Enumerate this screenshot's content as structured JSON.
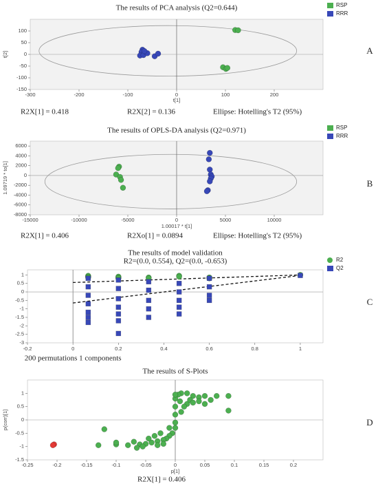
{
  "chart_data": [
    {
      "type": "scatter",
      "title": "The results of PCA analysis (Q2=0.644)",
      "xlabel": "t[1]",
      "ylabel": "t[2]",
      "footer": [
        "R2X[1] = 0.418",
        "R2X[2] = 0.136",
        "Ellipse: Hotelling's T2 (95%)"
      ],
      "panel_label": "A",
      "xlim": [
        -300,
        300
      ],
      "xticks": [
        -300,
        -200,
        -100,
        0,
        100,
        200
      ],
      "ylim": [
        -150,
        150
      ],
      "yticks": [
        -150,
        -100,
        -50,
        0,
        50,
        100
      ],
      "series": [
        {
          "name": "RSP",
          "color": "#4caf50",
          "x": [
            120,
            126,
            95,
            101,
            104
          ],
          "values": [
            104,
            103,
            -55,
            -62,
            -58
          ]
        },
        {
          "name": "RRR",
          "color": "#3848b8",
          "x": [
            -70,
            -72,
            -75,
            -68,
            -60,
            -45,
            -38,
            -66
          ],
          "values": [
            20,
            10,
            -5,
            -3,
            5,
            -8,
            3,
            14
          ]
        }
      ]
    },
    {
      "type": "scatter",
      "title": "The results of OPLS-DA analysis (Q2=0.971)",
      "xlabel": "1.00017 * t[1]",
      "ylabel": "1.09719 * to[1]",
      "footer": [
        "R2X[1] = 0.406",
        "R2Xo[1] = 0.0894",
        "Ellipse: Hotelling's T2 (95%)"
      ],
      "panel_label": "B",
      "xlim": [
        -15000,
        15000
      ],
      "xticks": [
        -15000,
        -10000,
        -5000,
        0,
        5000,
        10000
      ],
      "ylim": [
        -8000,
        7000
      ],
      "yticks": [
        -8000,
        -6000,
        -4000,
        -2000,
        0,
        2000,
        4000,
        6000
      ],
      "series": [
        {
          "name": "RSP",
          "color": "#4caf50",
          "x": [
            -5900,
            -6000,
            -6200,
            -5800,
            -5700,
            -5500
          ],
          "values": [
            1800,
            1500,
            200,
            -300,
            -900,
            -2500
          ]
        },
        {
          "name": "RRR",
          "color": "#3848b8",
          "x": [
            3400,
            3300,
            3400,
            3500,
            3600,
            3500,
            3400,
            3200,
            3100
          ],
          "values": [
            4600,
            3300,
            1200,
            200,
            -200,
            -600,
            -1200,
            -3000,
            -3200
          ]
        }
      ]
    },
    {
      "type": "scatter",
      "title": "The results of model validation",
      "subtitle": "R2=(0.0, 0.554), Q2=(0.0, -0.653)",
      "xlabel": "200 permutations 1 components",
      "footer": [],
      "panel_label": "C",
      "xlim": [
        -0.2,
        1.1
      ],
      "xticks": [
        -0.2,
        0,
        0.2,
        0.4,
        0.6,
        0.8,
        1
      ],
      "ylim": [
        -3,
        1.3
      ],
      "yticks": [
        -3,
        -2.5,
        -2,
        -1.5,
        -1,
        -0.5,
        0,
        0.5,
        1
      ],
      "series": [
        {
          "name": "R2",
          "color": "#4caf50",
          "marker": "circle",
          "x": [
            0.067,
            0.067,
            0.067,
            0.2,
            0.2,
            0.2,
            0.333,
            0.333,
            0.467,
            0.467,
            0.6,
            0.6,
            1
          ],
          "values": [
            0.95,
            0.9,
            0.85,
            0.9,
            0.85,
            0.8,
            0.85,
            0.8,
            0.95,
            0.9,
            0.85,
            0.8,
            1
          ]
        },
        {
          "name": "Q2",
          "color": "#3848b8",
          "marker": "square",
          "x": [
            0.067,
            0.067,
            0.067,
            0.067,
            0.067,
            0.067,
            0.067,
            0.2,
            0.2,
            0.2,
            0.2,
            0.2,
            0.2,
            0.2,
            0.333,
            0.333,
            0.333,
            0.333,
            0.333,
            0.467,
            0.467,
            0.467,
            0.467,
            0.467,
            0.6,
            0.6,
            0.6,
            0.6,
            1
          ],
          "values": [
            0.8,
            0.3,
            -0.2,
            -0.7,
            -1.2,
            -1.5,
            -1.8,
            0.7,
            0.2,
            -0.4,
            -0.9,
            -1.3,
            -1.7,
            -2.45,
            0.6,
            0.1,
            -0.5,
            -1,
            -1.5,
            0.5,
            0,
            -0.5,
            -0.9,
            -1.3,
            0.8,
            0.3,
            -0.2,
            -0.5,
            0.97
          ]
        }
      ],
      "fit_lines": [
        {
          "x": [
            0,
            1
          ],
          "values": [
            0.554,
            1
          ]
        },
        {
          "x": [
            0,
            1
          ],
          "values": [
            -0.653,
            0.97
          ]
        }
      ]
    },
    {
      "type": "scatter",
      "title": "The results of S-Plots",
      "xlabel": "p[1]",
      "ylabel": "p(corr)[1]",
      "footer": [
        "R2X[1] = 0.406"
      ],
      "panel_label": "D",
      "xlim": [
        -0.25,
        0.25
      ],
      "xticks": [
        -0.25,
        -0.2,
        -0.15,
        -0.1,
        -0.05,
        0,
        0.05,
        0.1,
        0.15,
        0.2
      ],
      "ylim": [
        -1.5,
        1.5
      ],
      "yticks": [
        -1.5,
        -1,
        -0.5,
        0,
        0.5,
        1
      ],
      "series": [
        {
          "color": "#4caf50",
          "x": [
            -0.12,
            -0.13,
            -0.1,
            -0.1,
            -0.08,
            -0.07,
            0.05,
            0.07,
            0.09,
            0.09,
            0.05,
            0.06,
            0.04,
            0.03,
            0.02,
            0.01,
            0.005,
            0,
            0,
            0,
            0,
            0,
            -0.005,
            -0.01,
            -0.015,
            -0.02,
            -0.03,
            -0.04,
            -0.05,
            -0.06,
            -0.03,
            -0.02,
            -0.045,
            -0.035,
            -0.025,
            -0.01,
            0.01,
            0.02,
            0.025,
            0.015,
            0.03,
            0.04,
            -0.055,
            -0.065,
            0,
            0.008
          ],
          "values": [
            -0.35,
            -0.95,
            -0.92,
            -0.85,
            -0.95,
            -0.82,
            0.9,
            0.9,
            0.9,
            0.35,
            0.6,
            0.75,
            0.85,
            0.9,
            1,
            1,
            0.95,
            0.8,
            0.5,
            0.2,
            -0.1,
            -0.3,
            -0.5,
            -0.6,
            -0.7,
            -0.75,
            -0.8,
            -0.85,
            -0.9,
            -0.92,
            -0.95,
            -0.9,
            -0.7,
            -0.6,
            -0.5,
            -0.3,
            0.3,
            0.6,
            0.75,
            0.5,
            0.65,
            0.7,
            -1,
            -1.05,
            0.95,
            0.7
          ]
        },
        {
          "color": "#e53935",
          "x": [
            -0.205,
            -0.207
          ],
          "values": [
            -0.92,
            -0.95
          ]
        }
      ]
    }
  ]
}
